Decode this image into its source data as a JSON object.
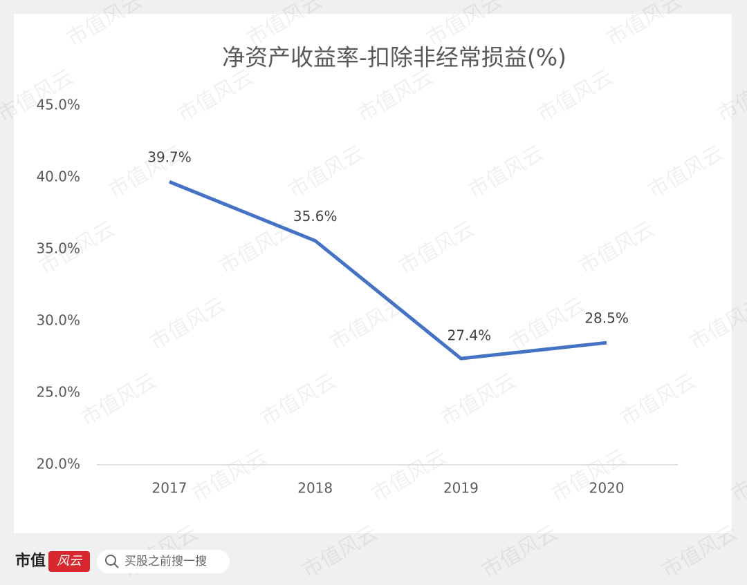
{
  "chart_data": {
    "type": "line",
    "title": "净资产收益率-扣除非经常损益(%)",
    "categories": [
      "2017",
      "2018",
      "2019",
      "2020"
    ],
    "series": [
      {
        "color": "#4472c4",
        "values": [
          39.7,
          35.6,
          27.4,
          28.5
        ],
        "value_labels": [
          "39.7%",
          "35.6%",
          "27.4%",
          "28.5%"
        ]
      }
    ],
    "ylim": [
      20,
      45
    ],
    "yticks": [
      {
        "value": 20,
        "label": "20.0%"
      },
      {
        "value": 25,
        "label": "25.0%"
      },
      {
        "value": 30,
        "label": "30.0%"
      },
      {
        "value": 35,
        "label": "35.0%"
      },
      {
        "value": 40,
        "label": "40.0%"
      },
      {
        "value": 45,
        "label": "45.0%"
      }
    ],
    "grid": false
  },
  "watermark": "市值风云",
  "footer": {
    "brand": "市值",
    "brand_mark": "风云",
    "search_placeholder": "买股之前搜一搜"
  }
}
